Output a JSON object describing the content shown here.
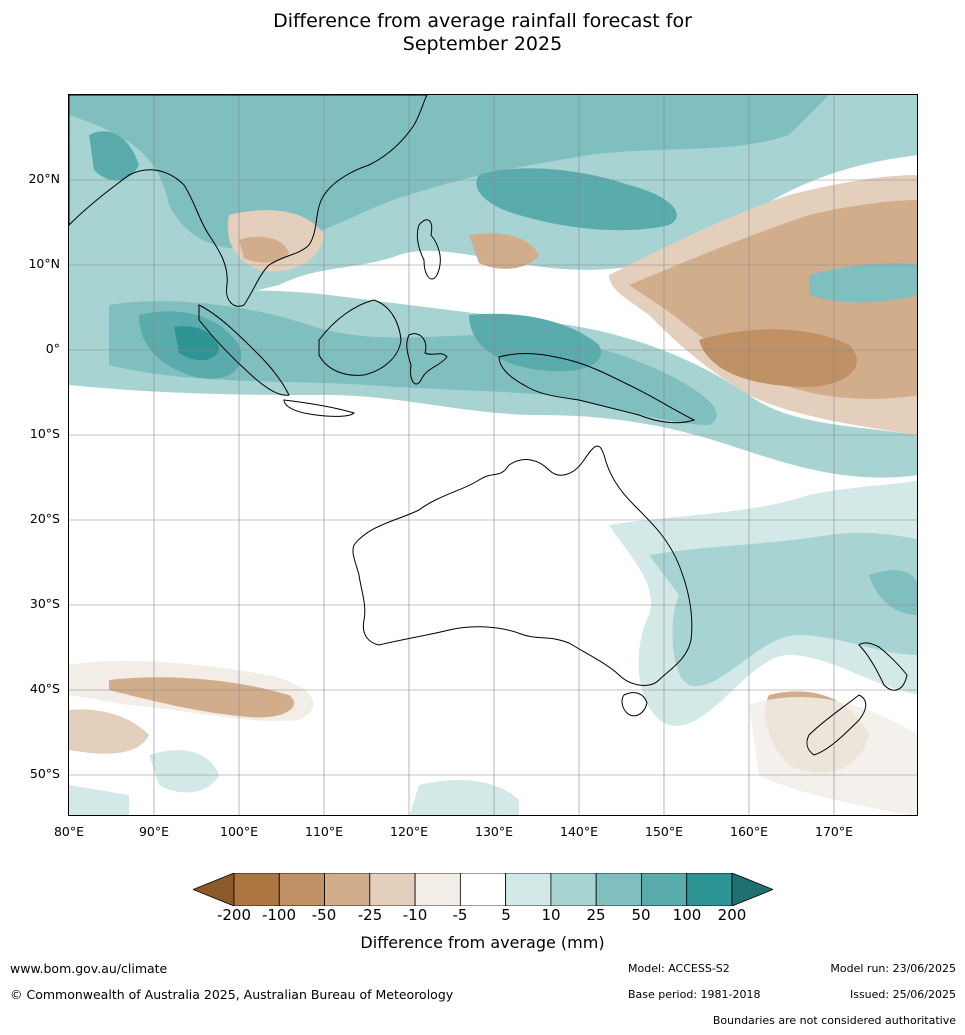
{
  "title_line1": "Difference from average rainfall forecast for",
  "title_line2": "September 2025",
  "map": {
    "lat_labels": [
      "20°N",
      "10°N",
      "0°",
      "10°S",
      "20°S",
      "30°S",
      "40°S",
      "50°S"
    ],
    "lat_values": [
      20,
      10,
      0,
      -10,
      -20,
      -30,
      -40,
      -50
    ],
    "lon_labels": [
      "80°E",
      "90°E",
      "100°E",
      "110°E",
      "120°E",
      "130°E",
      "140°E",
      "150°E",
      "160°E",
      "170°E"
    ],
    "lon_values": [
      80,
      90,
      100,
      110,
      120,
      130,
      140,
      150,
      160,
      170
    ],
    "extent": {
      "lon_min": 80,
      "lon_max": 180,
      "lat_min": -55,
      "lat_max": 30
    }
  },
  "colorbar": {
    "ticks": [
      "-200",
      "-100",
      "-50",
      "-25",
      "-10",
      "-5",
      "5",
      "10",
      "25",
      "50",
      "100",
      "200"
    ],
    "colors": [
      "#8c5a2b",
      "#ad7540",
      "#bf9165",
      "#d1ad8c",
      "#e4cfbd",
      "#f2ede7",
      "#ffffff",
      "#d3e9e8",
      "#a8d3d3",
      "#80bfbf",
      "#5aabab",
      "#2e9494",
      "#217070"
    ],
    "label": "Difference from average (mm)"
  },
  "footer": {
    "url": "www.bom.gov.au/climate",
    "copyright": "© Commonwealth of Australia 2025, Australian Bureau of Meteorology",
    "model": "Model: ACCESS-S2",
    "model_run": "Model run: 23/06/2025",
    "base_period": "Base period: 1981-2018",
    "issued": "Issued: 25/06/2025",
    "disclaimer": "Boundaries are not considered authoritative"
  }
}
